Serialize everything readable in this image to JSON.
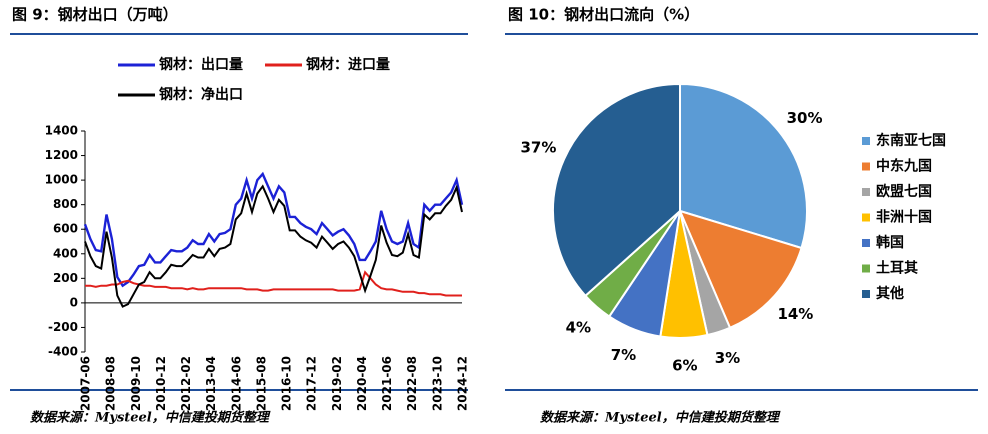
{
  "chart_data": [
    {
      "type": "line",
      "title": "图 9：钢材出口（万吨）",
      "source": "数据来源：Mysteel，中信建投期货整理",
      "x": [
        "2007-06",
        "2007-09",
        "2007-12",
        "2008-03",
        "2008-06",
        "2008-09",
        "2008-12",
        "2009-03",
        "2009-06",
        "2009-09",
        "2009-12",
        "2010-03",
        "2010-06",
        "2010-09",
        "2010-12",
        "2011-03",
        "2011-06",
        "2011-09",
        "2011-12",
        "2012-03",
        "2012-06",
        "2012-09",
        "2012-12",
        "2013-03",
        "2013-06",
        "2013-09",
        "2013-12",
        "2014-03",
        "2014-06",
        "2014-09",
        "2014-12",
        "2015-03",
        "2015-06",
        "2015-09",
        "2015-12",
        "2016-03",
        "2016-06",
        "2016-09",
        "2016-12",
        "2017-03",
        "2017-06",
        "2017-09",
        "2017-12",
        "2018-03",
        "2018-06",
        "2018-09",
        "2018-12",
        "2019-03",
        "2019-06",
        "2019-09",
        "2019-12",
        "2020-03",
        "2020-06",
        "2020-09",
        "2020-12",
        "2021-03",
        "2021-06",
        "2021-09",
        "2021-12",
        "2022-03",
        "2022-06",
        "2022-09",
        "2022-12",
        "2023-03",
        "2023-06",
        "2023-09",
        "2023-12",
        "2024-03",
        "2024-06",
        "2024-09",
        "2024-12"
      ],
      "series": [
        {
          "name": "钢材：出口量",
          "color": "#1c22d6",
          "values": [
            640,
            520,
            430,
            420,
            720,
            520,
            210,
            140,
            170,
            230,
            300,
            310,
            390,
            330,
            330,
            380,
            430,
            420,
            420,
            450,
            510,
            480,
            480,
            560,
            500,
            560,
            570,
            600,
            800,
            850,
            1000,
            850,
            1000,
            1050,
            950,
            850,
            950,
            900,
            700,
            700,
            650,
            620,
            600,
            560,
            650,
            600,
            550,
            580,
            600,
            550,
            480,
            350,
            350,
            420,
            500,
            750,
            600,
            500,
            480,
            500,
            650,
            480,
            450,
            800,
            750,
            800,
            800,
            850,
            900,
            1000,
            800
          ]
        },
        {
          "name": "钢材：进口量",
          "color": "#e0201c",
          "values": [
            140,
            140,
            130,
            140,
            140,
            150,
            150,
            170,
            180,
            160,
            150,
            140,
            140,
            130,
            130,
            130,
            120,
            120,
            120,
            110,
            120,
            110,
            110,
            120,
            120,
            120,
            120,
            120,
            120,
            120,
            110,
            110,
            110,
            100,
            100,
            110,
            110,
            110,
            110,
            110,
            110,
            110,
            110,
            110,
            110,
            110,
            110,
            100,
            100,
            100,
            100,
            110,
            250,
            200,
            150,
            120,
            110,
            110,
            100,
            90,
            90,
            90,
            80,
            80,
            70,
            70,
            70,
            60,
            60,
            60,
            60
          ]
        },
        {
          "name": "钢材：净出口",
          "color": "#000000",
          "values": [
            500,
            380,
            300,
            280,
            580,
            370,
            60,
            -30,
            -10,
            70,
            150,
            170,
            250,
            200,
            200,
            250,
            310,
            300,
            300,
            340,
            390,
            370,
            370,
            440,
            380,
            440,
            450,
            480,
            680,
            730,
            890,
            740,
            890,
            950,
            850,
            740,
            840,
            790,
            590,
            590,
            540,
            510,
            490,
            450,
            540,
            490,
            440,
            480,
            500,
            450,
            380,
            240,
            100,
            220,
            350,
            630,
            490,
            390,
            380,
            410,
            560,
            390,
            370,
            720,
            680,
            730,
            730,
            790,
            840,
            940,
            740
          ]
        }
      ],
      "xlim": [
        "2007-06",
        "2024-12"
      ],
      "xticks": [
        "2007-06",
        "2008-08",
        "2009-10",
        "2010-12",
        "2012-02",
        "2013-04",
        "2014-06",
        "2015-08",
        "2016-10",
        "2017-12",
        "2019-02",
        "2020-04",
        "2021-06",
        "2022-08",
        "2023-10",
        "2024-12"
      ],
      "ylim": [
        -400,
        1400
      ],
      "yticks": [
        -400,
        -200,
        0,
        200,
        400,
        600,
        800,
        1000,
        1200,
        1400
      ]
    },
    {
      "type": "pie",
      "title": "图 10：钢材出口流向（%）",
      "source": "数据来源：Mysteel，中信建投期货整理",
      "categories": [
        "东南亚七国",
        "中东九国",
        "欧盟七国",
        "非洲十国",
        "韩国",
        "土耳其",
        "其他"
      ],
      "values": [
        30,
        14,
        3,
        6,
        7,
        4,
        37
      ],
      "value_labels": [
        "30%",
        "14%",
        "3%",
        "6%",
        "7%",
        "4%",
        "37%"
      ],
      "colors": [
        "#5b9bd5",
        "#ed7d31",
        "#a5a5a5",
        "#ffc000",
        "#4472c4",
        "#70ad47",
        "#255e91"
      ]
    }
  ]
}
